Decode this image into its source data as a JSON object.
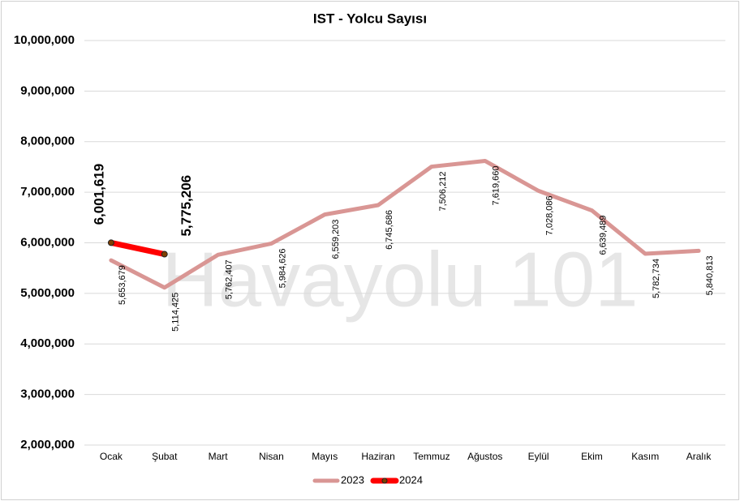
{
  "chart_data": {
    "type": "line",
    "title": "IST - Yolcu Sayısı",
    "watermark": "Havayolu 101",
    "categories": [
      "Ocak",
      "Şubat",
      "Mart",
      "Nisan",
      "Mayıs",
      "Haziran",
      "Temmuz",
      "Ağustos",
      "Eylül",
      "Ekim",
      "Kasım",
      "Aralık"
    ],
    "series": [
      {
        "name": "2023",
        "color": "#d99694",
        "values": [
          5653679,
          5114425,
          5762407,
          5984626,
          6559203,
          6745686,
          7506212,
          7619660,
          7028086,
          6639489,
          5782734,
          5840813
        ],
        "value_labels": [
          "5,653,679",
          "5,114,425",
          "5,762,407",
          "5,984,626",
          "6,559,203",
          "6,745,686",
          "7,506,212",
          "7,619,660",
          "7,028,086",
          "6,639,489",
          "5,782,734",
          "5,840,813"
        ]
      },
      {
        "name": "2024",
        "color": "#ff0000",
        "values": [
          6001619,
          5775206,
          null,
          null,
          null,
          null,
          null,
          null,
          null,
          null,
          null,
          null
        ],
        "value_labels": [
          "6,001,619",
          "5,775,206",
          null,
          null,
          null,
          null,
          null,
          null,
          null,
          null,
          null,
          null
        ]
      }
    ],
    "ylim": [
      2000000,
      10000000
    ],
    "yticks": [
      {
        "value": 2000000,
        "label": "2,000,000"
      },
      {
        "value": 3000000,
        "label": "3,000,000"
      },
      {
        "value": 4000000,
        "label": "4,000,000"
      },
      {
        "value": 5000000,
        "label": "5,000,000"
      },
      {
        "value": 6000000,
        "label": "6,000,000"
      },
      {
        "value": 7000000,
        "label": "7,000,000"
      },
      {
        "value": 8000000,
        "label": "8,000,000"
      },
      {
        "value": 9000000,
        "label": "9,000,000"
      },
      {
        "value": 10000000,
        "label": "10,000,000"
      }
    ],
    "grid": true,
    "legend": "bottom"
  }
}
